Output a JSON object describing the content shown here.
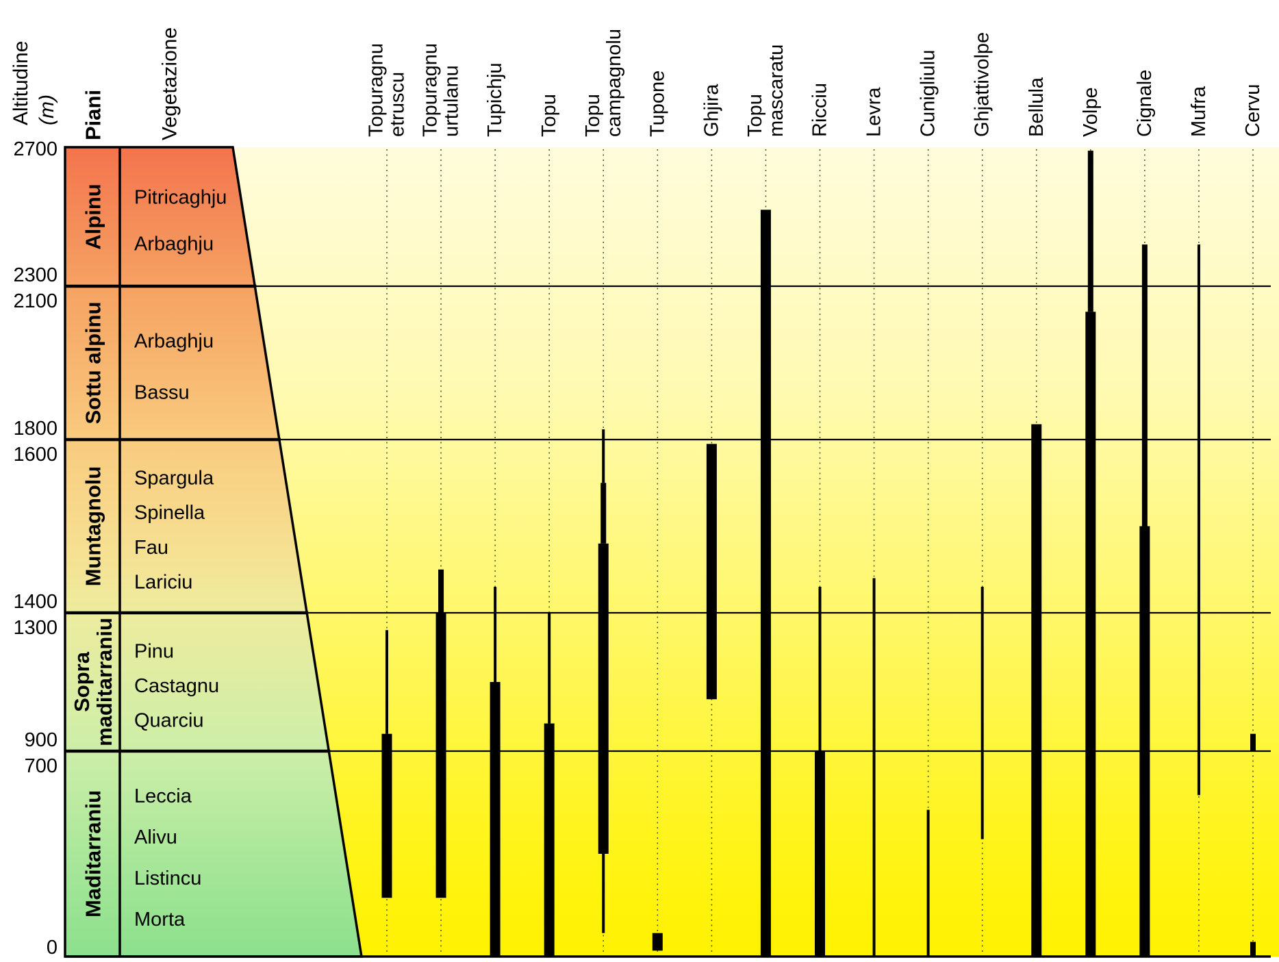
{
  "header": {
    "altitudine": "Altitudine",
    "unit": "(m)",
    "piani": "Piani",
    "vegetazione": "Vegetazione"
  },
  "axis_ticks": [
    {
      "label": "2700",
      "alt": 2700,
      "pos": "top"
    },
    {
      "label": "2300",
      "alt": 2300,
      "pos": "above"
    },
    {
      "label": "2100",
      "alt": 2100,
      "pos": "below"
    },
    {
      "label": "1800",
      "alt": 1800,
      "pos": "above"
    },
    {
      "label": "1600",
      "alt": 1600,
      "pos": "below"
    },
    {
      "label": "1400",
      "alt": 1400,
      "pos": "above"
    },
    {
      "label": "1300",
      "alt": 1300,
      "pos": "below"
    },
    {
      "label": "900",
      "alt": 900,
      "pos": "above"
    },
    {
      "label": "700",
      "alt": 700,
      "pos": "below"
    },
    {
      "label": "0",
      "alt": 0,
      "pos": "bottom"
    }
  ],
  "colors": {
    "background_top": "#FFFCDC",
    "background_bottom": "#FFF200",
    "zone_alpine_top": "#F3744D",
    "zone_mid_orange": "#F9CB7F",
    "zone_mid_yellow": "#EDEC9E",
    "zone_bottom_green": "#8CE08D",
    "line": "#000000",
    "bar": "#000000",
    "dotted_guide": "#4E4A2E"
  },
  "chart_data": {
    "type": "range-bar",
    "title": "",
    "ylabel": "Altitudine (m)",
    "ylim": [
      0,
      2700
    ],
    "grid": "zone boundary lines at 2300/2100, 1800/1600, 1400/1300, 900/700 m",
    "legend_position": "none",
    "thickness_levels": [
      "thin",
      "medium",
      "thick"
    ],
    "zones": [
      {
        "piani": "Alpinu",
        "piani_label_lines": [
          "Alpinu"
        ],
        "alt_range_m": [
          2300,
          2700
        ],
        "vegetazione": [
          "Pitricaghju",
          "Arbaghju"
        ]
      },
      {
        "piani": "Sottu alpinu",
        "piani_label_lines": [
          "Sottu alpinu"
        ],
        "alt_range_m": [
          1800,
          2300
        ],
        "vegetazione": [
          "Arbaghju",
          "Bassu"
        ]
      },
      {
        "piani": "Muntagnolu",
        "piani_label_lines": [
          "Muntagnolu"
        ],
        "alt_range_m": [
          1400,
          1600
        ],
        "vegetazione": [
          "Spargula",
          "Spinella",
          "Fau",
          "Lariciu"
        ]
      },
      {
        "piani": "Sopra maditarraniu",
        "piani_label_lines": [
          "Sopra",
          "maditarraniu"
        ],
        "alt_range_m": [
          900,
          1300
        ],
        "vegetazione": [
          "Pinu",
          "Castagnu",
          "Quarciu"
        ]
      },
      {
        "piani": "Maditarraniu",
        "piani_label_lines": [
          "Maditarraniu"
        ],
        "alt_range_m": [
          0,
          700
        ],
        "vegetazione": [
          "Leccia",
          "Alivu",
          "Listincu",
          "Morta"
        ]
      }
    ],
    "species": [
      {
        "name": "Topuragnu etruscu",
        "label_lines": [
          "Topuragnu",
          "etruscu"
        ],
        "segments": [
          {
            "level": "thin",
            "from": 1250,
            "to": 950
          },
          {
            "level": "thick",
            "from": 950,
            "to": 200
          }
        ]
      },
      {
        "name": "Topuragnu urtulanu",
        "label_lines": [
          "Topuragnu",
          "urtulanu"
        ],
        "segments": [
          {
            "level": "medium",
            "from": 1450,
            "to": 1300
          },
          {
            "level": "thick",
            "from": 1300,
            "to": 200
          }
        ]
      },
      {
        "name": "Tupichju",
        "label_lines": [
          "Tupichju"
        ],
        "segments": [
          {
            "level": "thin",
            "from": 1430,
            "to": 1100
          },
          {
            "level": "thick",
            "from": 1100,
            "to": 0
          }
        ]
      },
      {
        "name": "Topu",
        "label_lines": [
          "Topu"
        ],
        "segments": [
          {
            "level": "thin",
            "from": 1350,
            "to": 980
          },
          {
            "level": "thick",
            "from": 980,
            "to": 0
          }
        ]
      },
      {
        "name": "Topu campagnolu",
        "label_lines": [
          "Topu",
          "campagnolu"
        ],
        "segments": [
          {
            "level": "thin",
            "from": 1820,
            "to": 1550
          },
          {
            "level": "medium",
            "from": 1550,
            "to": 1480
          },
          {
            "level": "thick",
            "from": 1480,
            "to": 350
          },
          {
            "level": "thin",
            "from": 350,
            "to": 80
          }
        ]
      },
      {
        "name": "Tupone",
        "label_lines": [
          "Tupone"
        ],
        "segments": [
          {
            "level": "thick",
            "from": 80,
            "to": 20
          }
        ]
      },
      {
        "name": "Ghjira",
        "label_lines": [
          "Ghjira"
        ],
        "segments": [
          {
            "level": "thick",
            "from": 1595,
            "to": 1050
          }
        ]
      },
      {
        "name": "Topu mascaratu",
        "label_lines": [
          "Topu",
          "mascaratu"
        ],
        "segments": [
          {
            "level": "thick",
            "from": 2520,
            "to": 0
          }
        ]
      },
      {
        "name": "Ricciu",
        "label_lines": [
          "Ricciu"
        ],
        "segments": [
          {
            "level": "thin",
            "from": 1430,
            "to": 800
          },
          {
            "level": "thick",
            "from": 800,
            "to": 0
          }
        ]
      },
      {
        "name": "Levra",
        "label_lines": [
          "Levra"
        ],
        "segments": [
          {
            "level": "thin",
            "from": 1440,
            "to": 0
          }
        ]
      },
      {
        "name": "Cunigliulu",
        "label_lines": [
          "Cunigliulu"
        ],
        "segments": [
          {
            "level": "thin",
            "from": 500,
            "to": 0
          }
        ]
      },
      {
        "name": "Ghjattivolpe",
        "label_lines": [
          "Ghjattivolpe"
        ],
        "segments": [
          {
            "level": "thin",
            "from": 1430,
            "to": 400
          }
        ]
      },
      {
        "name": "Bellula",
        "label_lines": [
          "Bellula"
        ],
        "segments": [
          {
            "level": "thick",
            "from": 1830,
            "to": 0
          }
        ]
      },
      {
        "name": "Volpe",
        "label_lines": [
          "Volpe"
        ],
        "segments": [
          {
            "level": "medium",
            "from": 2690,
            "to": 2050
          },
          {
            "level": "thick",
            "from": 2050,
            "to": 0
          }
        ]
      },
      {
        "name": "Cignale",
        "label_lines": [
          "Cignale"
        ],
        "segments": [
          {
            "level": "medium",
            "from": 2420,
            "to": 1500
          },
          {
            "level": "thick",
            "from": 1500,
            "to": 0
          }
        ]
      },
      {
        "name": "Mufra",
        "label_lines": [
          "Mufra"
        ],
        "segments": [
          {
            "level": "thin",
            "from": 2420,
            "to": 550
          }
        ]
      },
      {
        "name": "Cervu",
        "label_lines": [
          "Cervu"
        ],
        "segments": [
          {
            "level": "medium",
            "from": 950,
            "to": 900
          },
          {
            "level": "medium",
            "from": 50,
            "to": 0
          }
        ]
      }
    ]
  }
}
